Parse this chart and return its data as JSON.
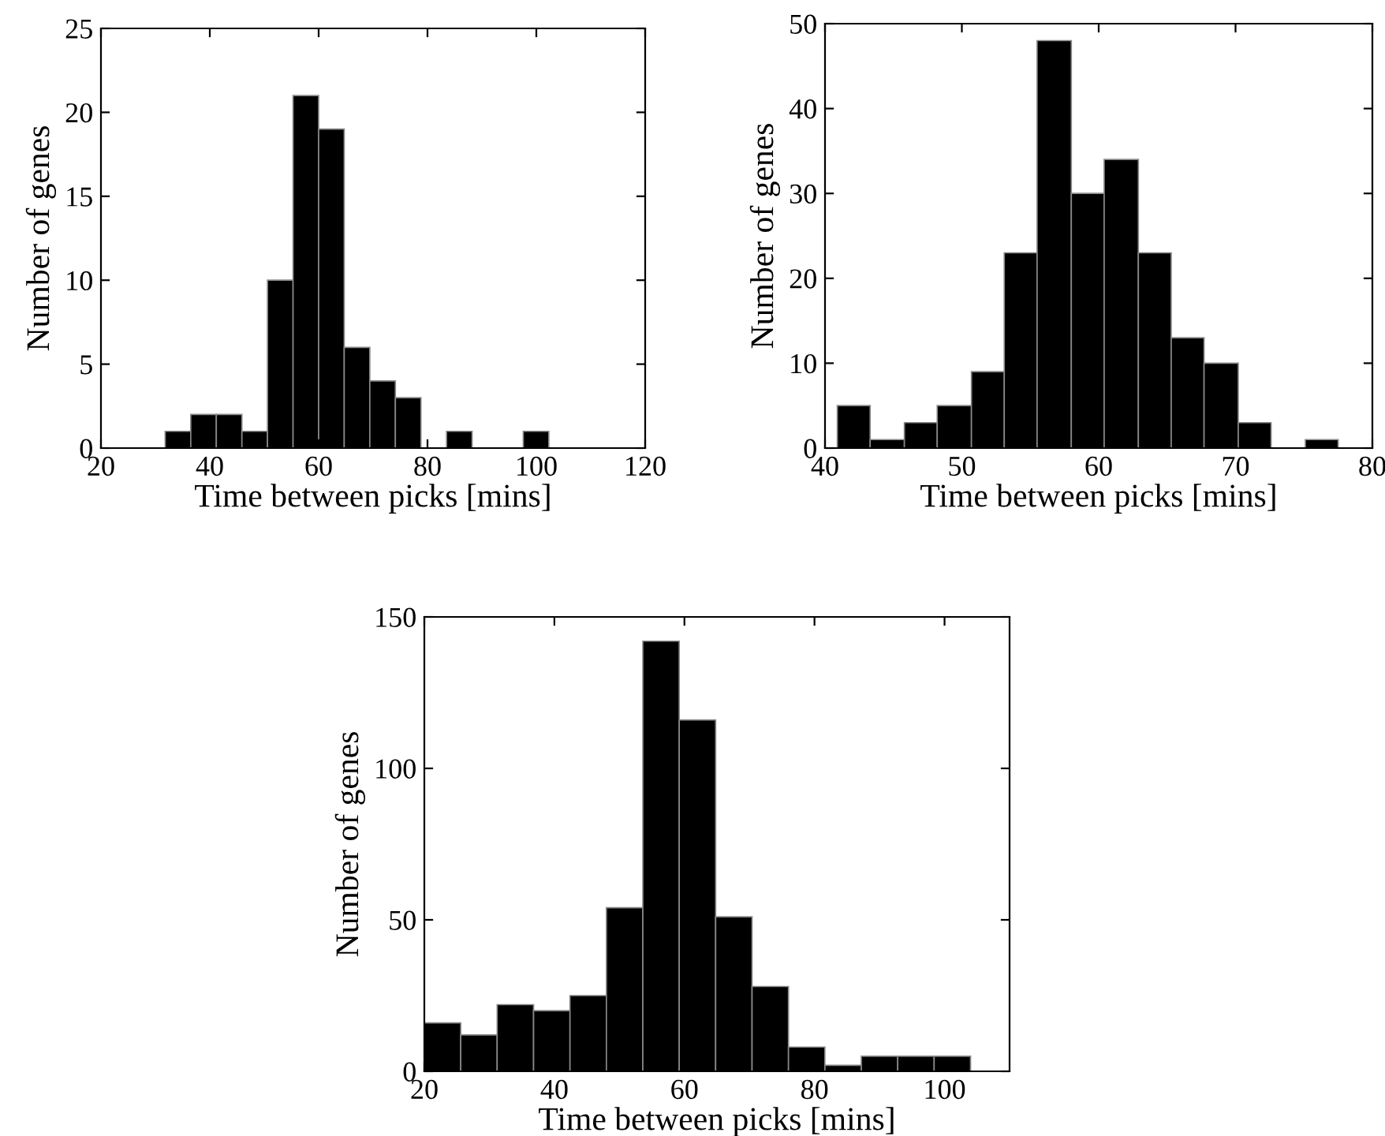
{
  "chart_data": [
    {
      "type": "histogram",
      "xlabel": "Time between picks [mins]",
      "ylabel": "Number of genes",
      "color": "#000000",
      "bins": [
        31.8,
        36.5,
        41.2,
        45.9,
        50.6,
        55.3,
        60.0,
        64.7,
        69.4,
        74.1,
        78.8,
        83.5,
        88.2,
        92.9,
        97.6,
        102.3
      ],
      "values": [
        1,
        2,
        2,
        1,
        10,
        21,
        19,
        6,
        4,
        3,
        0,
        1,
        0,
        0,
        1
      ],
      "xlim": [
        20,
        120
      ],
      "xticks": [
        20,
        40,
        60,
        80,
        100,
        120
      ],
      "ylim": [
        0,
        25
      ],
      "yticks": [
        0,
        5,
        10,
        15,
        20,
        25
      ]
    },
    {
      "type": "histogram",
      "xlabel": "Time between picks [mins]",
      "ylabel": "Number of genes",
      "color": "#000000",
      "bins": [
        40.9,
        43.3,
        45.8,
        48.2,
        50.7,
        53.1,
        55.5,
        58.0,
        60.4,
        62.9,
        65.3,
        67.7,
        70.2,
        72.6,
        75.1,
        77.5
      ],
      "values": [
        5,
        1,
        3,
        5,
        9,
        23,
        48,
        30,
        34,
        23,
        13,
        10,
        3,
        0,
        1
      ],
      "xlim": [
        40,
        80
      ],
      "xticks": [
        40,
        50,
        60,
        70,
        80
      ],
      "ylim": [
        0,
        50
      ],
      "yticks": [
        0,
        10,
        20,
        30,
        40,
        50
      ]
    },
    {
      "type": "histogram",
      "xlabel": "Time between picks [mins]",
      "ylabel": "Number of genes",
      "color": "#000000",
      "bins": [
        20.0,
        25.6,
        31.2,
        36.8,
        42.4,
        48.0,
        53.6,
        59.2,
        64.8,
        70.4,
        76.0,
        81.6,
        87.2,
        92.8,
        98.4,
        104.0
      ],
      "values": [
        16,
        12,
        22,
        20,
        25,
        54,
        142,
        116,
        51,
        28,
        8,
        2,
        5,
        5,
        5
      ],
      "xlim": [
        20,
        110
      ],
      "xticks": [
        20,
        40,
        60,
        80,
        100
      ],
      "ylim": [
        0,
        150
      ],
      "yticks": [
        0,
        50,
        100,
        150
      ]
    }
  ]
}
